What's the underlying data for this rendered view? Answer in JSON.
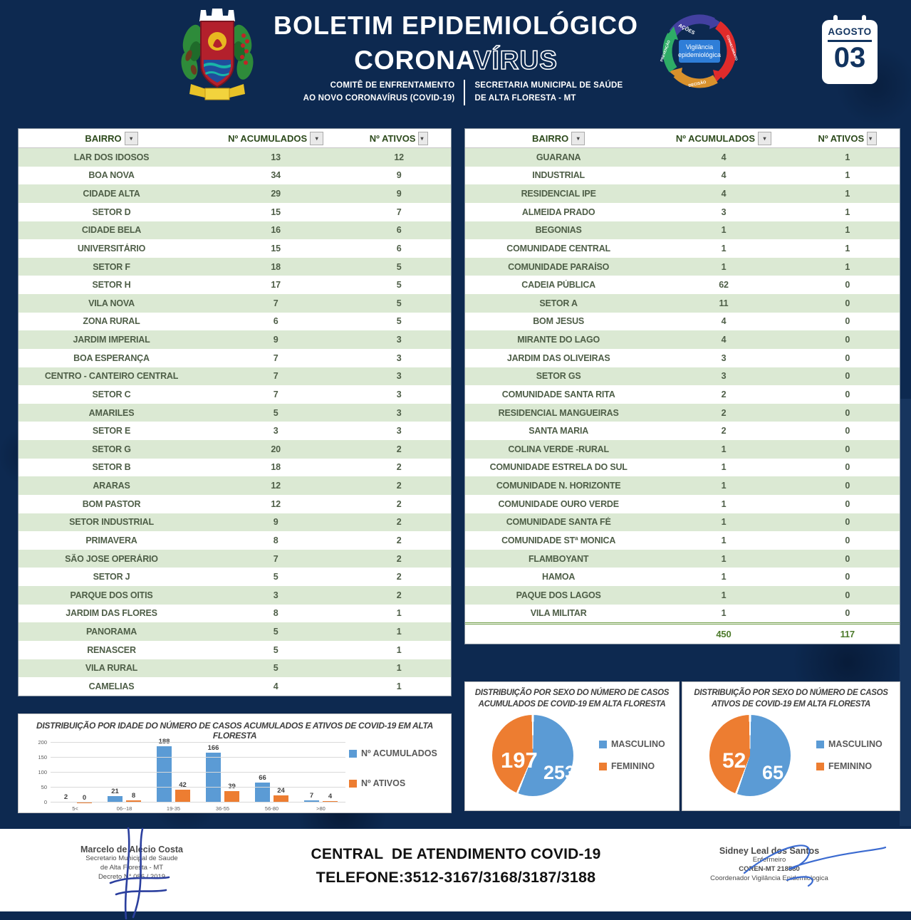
{
  "header": {
    "title_line1": "BOLETIM EPIDEMIOLÓGICO",
    "title_corona": "CORONA",
    "title_virus": "VÍRUS",
    "committee_line1": "COMITÊ DE ENFRENTAMENTO",
    "committee_line2": "AO NOVO CORONAVÍRUS (COVID-19)",
    "secretary_line1": "SECRETARIA MUNICIPAL DE SAÚDE",
    "secretary_line2": "DE ALTA FLORESTA - MT",
    "calendar_month": "AGOSTO",
    "calendar_day": "03",
    "cycle_center_line1": "Vigilância",
    "cycle_center_line2": "epidemiológica",
    "cycle_labels": [
      "AÇÕES",
      "CONHECIMENTO",
      "DECISÃO",
      "PREVENÇÃO"
    ]
  },
  "tables": {
    "columns": [
      "BAIRRO",
      "Nº ACUMULADOS",
      "Nº ATIVOS"
    ],
    "left_rows": [
      [
        "LAR DOS IDOSOS",
        "13",
        "12"
      ],
      [
        "BOA NOVA",
        "34",
        "9"
      ],
      [
        "CIDADE ALTA",
        "29",
        "9"
      ],
      [
        "SETOR D",
        "15",
        "7"
      ],
      [
        "CIDADE BELA",
        "16",
        "6"
      ],
      [
        "UNIVERSITÁRIO",
        "15",
        "6"
      ],
      [
        "SETOR F",
        "18",
        "5"
      ],
      [
        "SETOR H",
        "17",
        "5"
      ],
      [
        "VILA NOVA",
        "7",
        "5"
      ],
      [
        "ZONA RURAL",
        "6",
        "5"
      ],
      [
        "JARDIM IMPERIAL",
        "9",
        "3"
      ],
      [
        "BOA ESPERANÇA",
        "7",
        "3"
      ],
      [
        "CENTRO - CANTEIRO CENTRAL",
        "7",
        "3"
      ],
      [
        "SETOR C",
        "7",
        "3"
      ],
      [
        "AMARILES",
        "5",
        "3"
      ],
      [
        "SETOR E",
        "3",
        "3"
      ],
      [
        "SETOR G",
        "20",
        "2"
      ],
      [
        "SETOR B",
        "18",
        "2"
      ],
      [
        "ARARAS",
        "12",
        "2"
      ],
      [
        "BOM PASTOR",
        "12",
        "2"
      ],
      [
        "SETOR INDUSTRIAL",
        "9",
        "2"
      ],
      [
        "PRIMAVERA",
        "8",
        "2"
      ],
      [
        "SÃO JOSE OPERÁRIO",
        "7",
        "2"
      ],
      [
        "SETOR J",
        "5",
        "2"
      ],
      [
        "PARQUE DOS OITIS",
        "3",
        "2"
      ],
      [
        "JARDIM DAS FLORES",
        "8",
        "1"
      ],
      [
        "PANORAMA",
        "5",
        "1"
      ],
      [
        "RENASCER",
        "5",
        "1"
      ],
      [
        "VILA RURAL",
        "5",
        "1"
      ],
      [
        "CAMELIAS",
        "4",
        "1"
      ]
    ],
    "right_rows": [
      [
        "GUARANA",
        "4",
        "1"
      ],
      [
        "INDUSTRIAL",
        "4",
        "1"
      ],
      [
        "RESIDENCIAL IPE",
        "4",
        "1"
      ],
      [
        "ALMEIDA PRADO",
        "3",
        "1"
      ],
      [
        "BEGONIAS",
        "1",
        "1"
      ],
      [
        "COMUNIDADE CENTRAL",
        "1",
        "1"
      ],
      [
        "COMUNIDADE PARAÍSO",
        "1",
        "1"
      ],
      [
        "CADEIA PÚBLICA",
        "62",
        "0"
      ],
      [
        "SETOR A",
        "11",
        "0"
      ],
      [
        "BOM JESUS",
        "4",
        "0"
      ],
      [
        "MIRANTE DO LAGO",
        "4",
        "0"
      ],
      [
        "JARDIM DAS OLIVEIRAS",
        "3",
        "0"
      ],
      [
        "SETOR GS",
        "3",
        "0"
      ],
      [
        "COMUNIDADE SANTA RITA",
        "2",
        "0"
      ],
      [
        "RESIDENCIAL MANGUEIRAS",
        "2",
        "0"
      ],
      [
        "SANTA MARIA",
        "2",
        "0"
      ],
      [
        "COLINA VERDE -RURAL",
        "1",
        "0"
      ],
      [
        "COMUNIDADE ESTRELA DO SUL",
        "1",
        "0"
      ],
      [
        "COMUNIDADE N. HORIZONTE",
        "1",
        "0"
      ],
      [
        "COMUNIDADE OURO VERDE",
        "1",
        "0"
      ],
      [
        "COMUNIDADE SANTA FÉ",
        "1",
        "0"
      ],
      [
        "COMUNIDADE STª MONICA",
        "1",
        "0"
      ],
      [
        "FLAMBOYANT",
        "1",
        "0"
      ],
      [
        "HAMOA",
        "1",
        "0"
      ],
      [
        "PAQUE DOS LAGOS",
        "1",
        "0"
      ],
      [
        "VILA MILITAR",
        "1",
        "0"
      ]
    ],
    "total_acumulados": "450",
    "total_ativos": "117"
  },
  "chart_data": [
    {
      "type": "bar",
      "title": "DISTRIBUIÇÃO POR IDADE DO NÚMERO DE CASOS ACUMULADOS E ATIVOS DE COVID-19 EM ALTA FLORESTA",
      "categories": [
        "5<",
        "06--18",
        "19-35",
        "36-55",
        "56-80",
        ">80"
      ],
      "series": [
        {
          "name": "Nº ACUMULADOS",
          "color": "#5b9bd5",
          "values": [
            2,
            21,
            188,
            166,
            66,
            7
          ]
        },
        {
          "name": "Nº ATIVOS",
          "color": "#ed7d31",
          "values": [
            0,
            8,
            42,
            39,
            24,
            4
          ]
        }
      ],
      "xlabel": "",
      "ylabel": "",
      "ylim": [
        0,
        200
      ],
      "yticks": [
        0,
        50,
        100,
        150,
        200
      ],
      "grid": true,
      "legend_position": "right"
    },
    {
      "type": "pie",
      "title_line1": "DISTRIBUIÇÃO POR SEXO DO NÚMERO DE CASOS",
      "title_line2": "ACUMULADOS DE COVID-19 EM ALTA FLORESTA",
      "labels": [
        "MASCULINO",
        "FEMININO"
      ],
      "values": [
        253,
        197
      ],
      "colors": [
        "#5b9bd5",
        "#ed7d31"
      ],
      "legend_position": "right"
    },
    {
      "type": "pie",
      "title_line1": "DISTRIBUIÇÃO POR SEXO DO NÚMERO DE CASOS",
      "title_line2": "ATIVOS DE COVID-19 EM ALTA FLORESTA",
      "labels": [
        "MASCULINO",
        "FEMININO"
      ],
      "values": [
        65,
        52
      ],
      "colors": [
        "#5b9bd5",
        "#ed7d31"
      ],
      "legend_position": "right"
    }
  ],
  "footer": {
    "sig_left_name": "Marcelo de Alécio Costa",
    "sig_left_line2": "Secretario Municipal de Saude",
    "sig_left_line3": "de Alta Floresta - MT",
    "sig_left_line4": "Decreto N° 086 / 2019",
    "center_line1": "CENTRAL  DE ATENDIMENTO COVID-19",
    "center_line2": "TELEFONE:3512-3167/3168/3187/3188",
    "sig_right_name": "Sidney Leal dos Santos",
    "sig_right_line2": "Enfermeiro",
    "sig_right_line3": "COREN-MT 218580",
    "sig_right_line4": "Coordenador Vigilância Epidemiologica"
  },
  "colors": {
    "background_navy": "#0d2950",
    "accent_blue": "#5b9bd5",
    "accent_orange": "#ed7d31",
    "table_row_green": "#dbe9d3",
    "table_text_green": "#4e5e47",
    "header_text_green": "#2d4a1c"
  }
}
